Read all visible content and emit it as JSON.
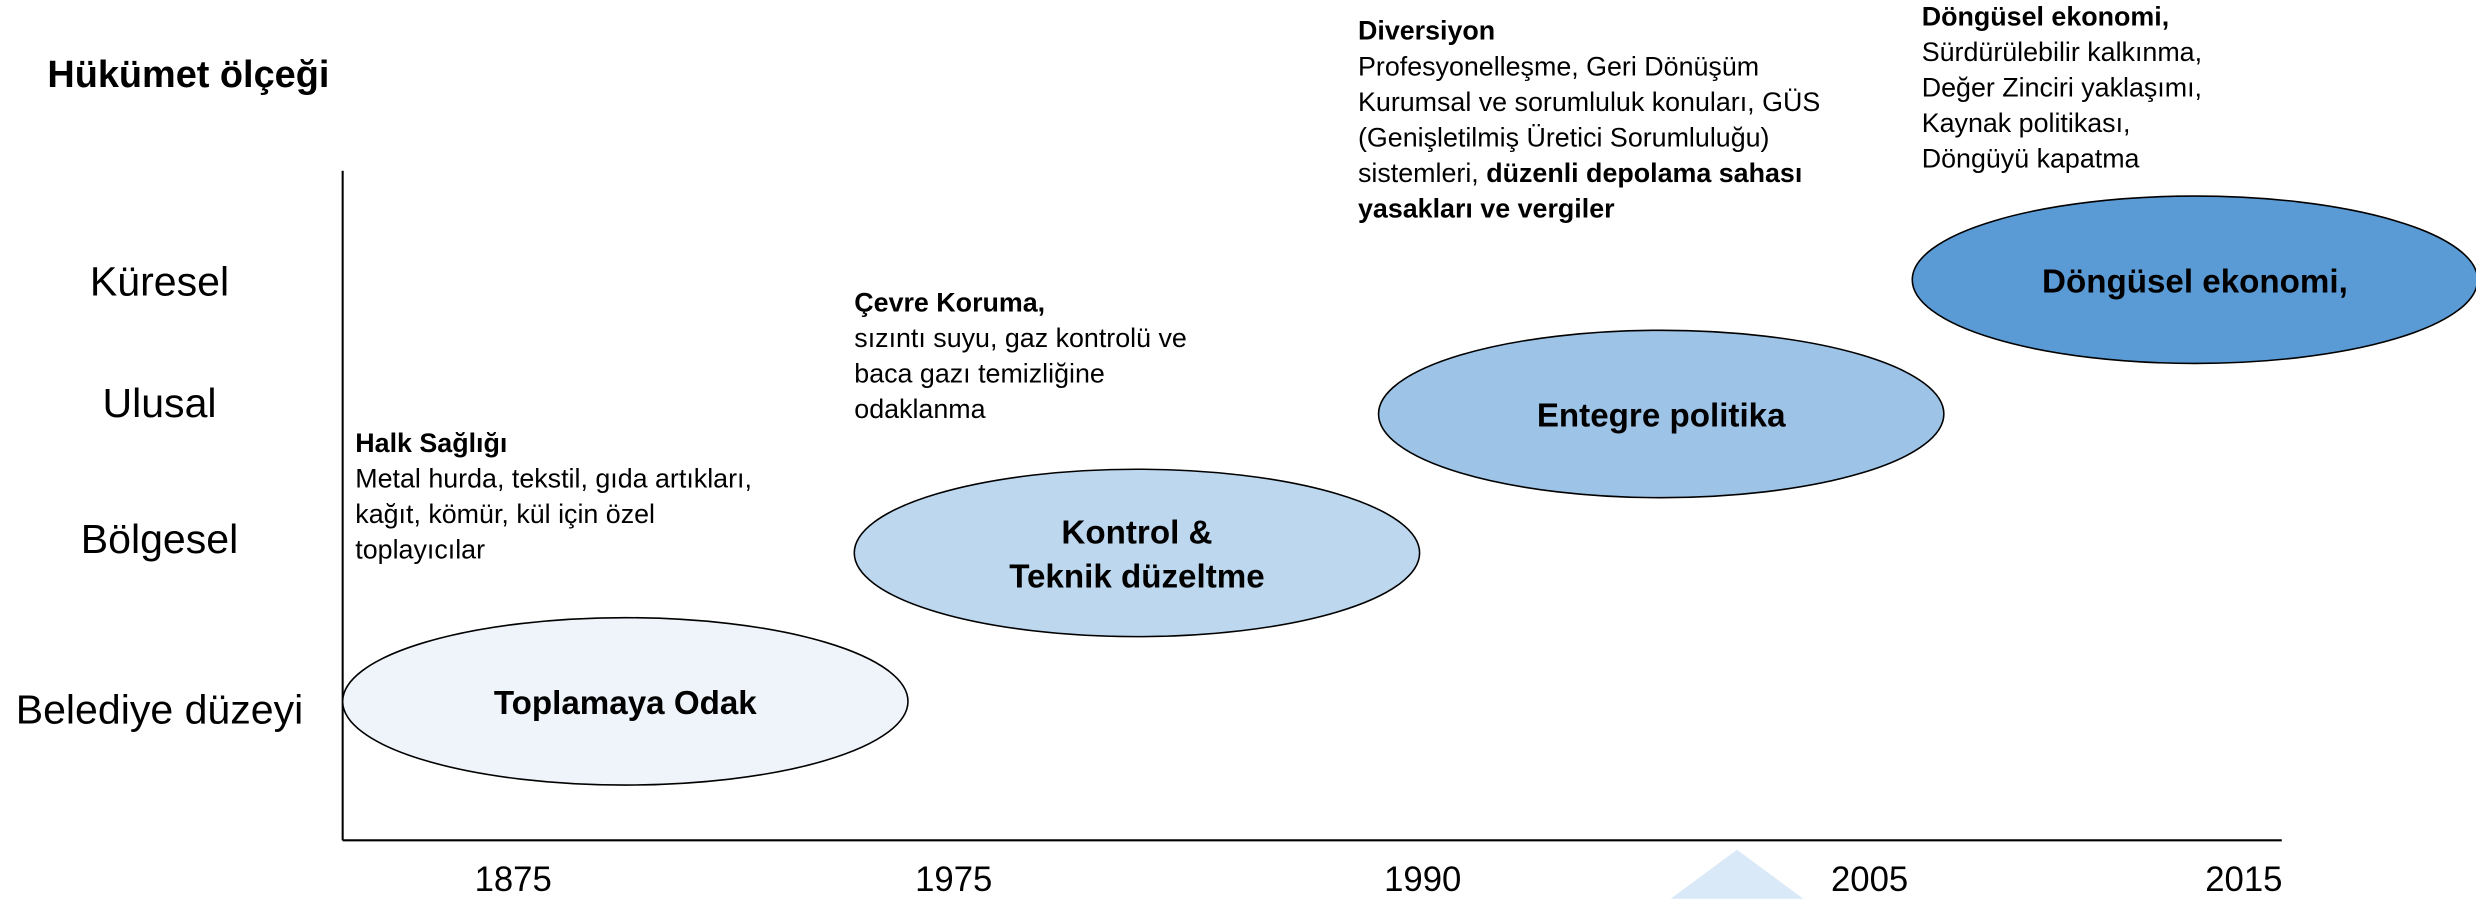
{
  "title": "Hükümet ölçeği",
  "levels": [
    "Küresel",
    "Ulusal",
    "Bölgesel",
    "Belediye düzeyi"
  ],
  "years": [
    "1875",
    "1975",
    "1990",
    "2005",
    "2015"
  ],
  "phases": [
    {
      "label": [
        "Toplamaya Odak"
      ],
      "heading": "Halk Sağlığı",
      "description": [
        "Metal hurda, tekstil, gıda artıkları,",
        "kağıt, kömür, kül için özel",
        "toplayıcılar"
      ]
    },
    {
      "label": [
        "Kontrol &",
        "Teknik düzeltme"
      ],
      "heading": "Çevre Koruma,",
      "description": [
        "sızıntı suyu, gaz kontrolü ve",
        "baca gazı temizliğine",
        "odaklanma"
      ]
    },
    {
      "label": [
        "Entegre politika"
      ],
      "heading": "Diversiyon",
      "description": [
        "Profesyonelleşme, Geri Dönüşüm",
        "Kurumsal ve sorumluluk konuları, GÜS",
        "(Genişletilmiş Üretici Sorumluluğu)",
        [
          {
            "text": "sistemleri, "
          },
          {
            "text": "düzenli depolama sahası",
            "bold": true
          }
        ],
        [
          {
            "text": "yasakları ve vergiler",
            "bold": true
          }
        ]
      ]
    },
    {
      "label": [
        "Döngüsel ekonomi,"
      ],
      "heading": "Döngüsel ekonomi,",
      "description": [
        "Sürdürülebilir kalkınma,",
        "Değer Zinciri yaklaşımı,",
        "Kaynak politikası,",
        "Döngüyü kapatma"
      ]
    }
  ]
}
